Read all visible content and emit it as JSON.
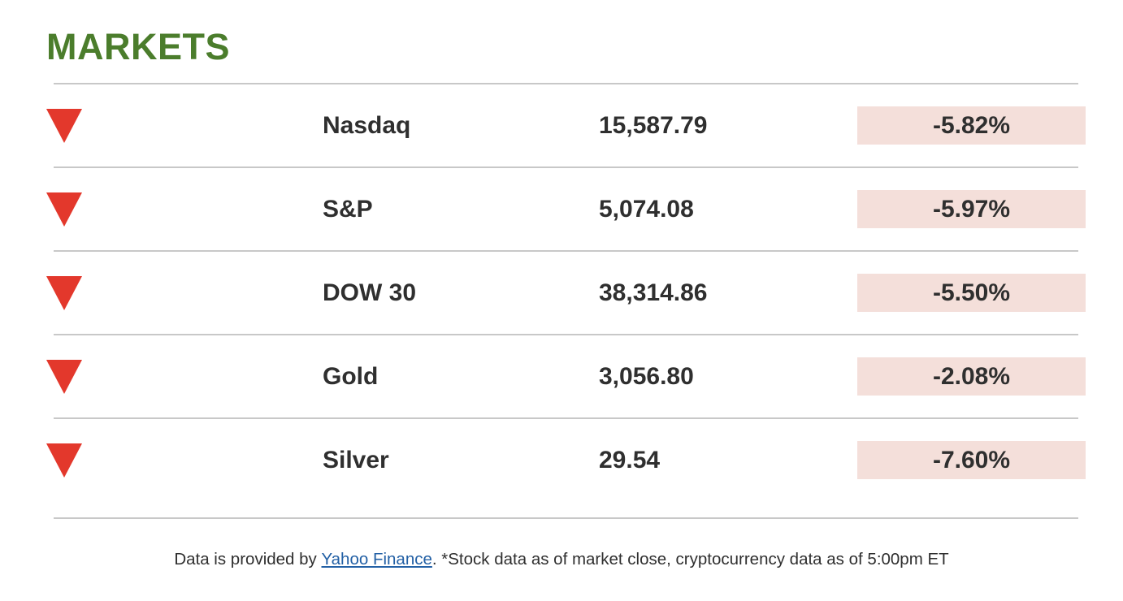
{
  "title": "MARKETS",
  "rows": [
    {
      "name": "Nasdaq",
      "value": "15,587.79",
      "change": "-5.82%",
      "direction": "down"
    },
    {
      "name": "S&P",
      "value": "5,074.08",
      "change": "-5.97%",
      "direction": "down"
    },
    {
      "name": "DOW 30",
      "value": "38,314.86",
      "change": "-5.50%",
      "direction": "down"
    },
    {
      "name": "Gold",
      "value": "3,056.80",
      "change": "-2.08%",
      "direction": "down"
    },
    {
      "name": "Silver",
      "value": "29.54",
      "change": "-7.60%",
      "direction": "down"
    }
  ],
  "footer": {
    "prefix": "Data is provided by ",
    "link_label": "Yahoo Finance",
    "suffix": ". *Stock data as of market close, cryptocurrency data as of 5:00pm ET"
  },
  "colors": {
    "title_green": "#4B7D2C",
    "down_arrow_red": "#E3382C",
    "change_badge_bg": "#F4DFDA",
    "text_dark": "#2F2F2F",
    "divider_gray": "#C8C8C8",
    "link_blue": "#2360A5"
  }
}
